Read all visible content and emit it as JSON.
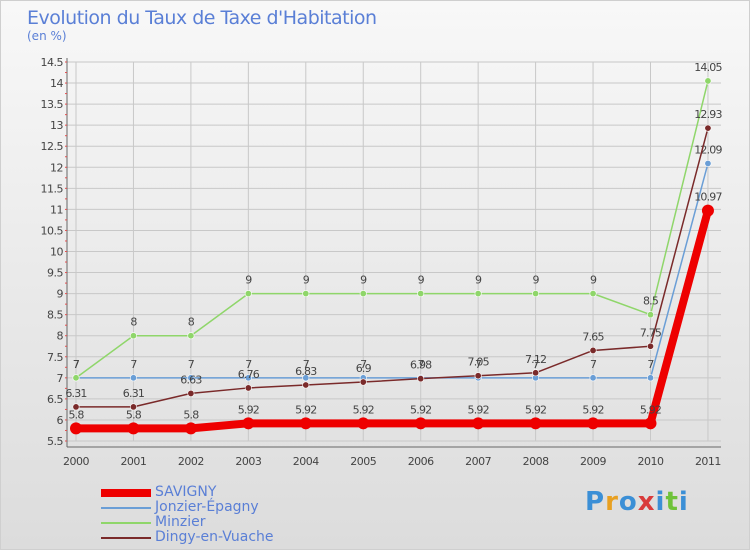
{
  "title": "Evolution du Taux de Taxe d'Habitation",
  "unit": "(en %)",
  "logo": {
    "text": "Proxiti",
    "colors": [
      "#3b8fd6",
      "#e8a021",
      "#3b8fd6",
      "#d93b3b",
      "#3b8fd6",
      "#6fc23a",
      "#3b8fd6"
    ]
  },
  "chart_data": {
    "type": "line",
    "x": [
      "2000",
      "2001",
      "2002",
      "2003",
      "2004",
      "2005",
      "2006",
      "2007",
      "2008",
      "2009",
      "2010",
      "2011"
    ],
    "ylim": [
      5.5,
      14.5
    ],
    "yticks": [
      "5.5",
      "6",
      "6.5",
      "7",
      "7.5",
      "8",
      "8.5",
      "9",
      "9.5",
      "10",
      "10.5",
      "11",
      "11.5",
      "12",
      "12.5",
      "13",
      "13.5",
      "14",
      "14.5"
    ],
    "grid": true,
    "series": [
      {
        "name": "SAVIGNY",
        "color": "#ee0000",
        "values": [
          5.8,
          5.8,
          5.8,
          5.92,
          5.92,
          5.92,
          5.92,
          5.92,
          5.92,
          5.92,
          5.92,
          10.97
        ],
        "labels": [
          "5.8",
          "5.8",
          "5.8",
          "5.92",
          "5.92",
          "5.92",
          "5.92",
          "5.92",
          "5.92",
          "5.92",
          "5.92",
          "10.97"
        ]
      },
      {
        "name": "Jonzier-Épagny",
        "color": "#6a9ed6",
        "values": [
          7,
          7,
          7,
          7,
          7,
          7,
          7,
          7,
          7,
          7,
          7,
          12.09
        ],
        "labels": [
          "7",
          "7",
          "7",
          "7",
          "7",
          "7",
          "7",
          "7",
          "7",
          "7",
          "7",
          "12.09"
        ]
      },
      {
        "name": "Minzier",
        "color": "#8fd66a",
        "values": [
          7,
          8,
          8,
          9,
          9,
          9,
          9,
          9,
          9,
          9,
          8.5,
          14.05
        ],
        "labels": [
          "7",
          "8",
          "8",
          "9",
          "9",
          "9",
          "9",
          "9",
          "9",
          "9",
          "8.5",
          "14.05"
        ]
      },
      {
        "name": "Dingy-en-Vuache",
        "color": "#7a2a2a",
        "values": [
          6.31,
          6.31,
          6.63,
          6.76,
          6.83,
          6.9,
          6.98,
          7.05,
          7.12,
          7.65,
          7.75,
          12.93
        ],
        "labels": [
          "6.31",
          "6.31",
          "6.63",
          "6.76",
          "6.83",
          "6.9",
          "6.98",
          "7.05",
          "7.12",
          "7.65",
          "7.75",
          "12.93"
        ]
      }
    ]
  }
}
